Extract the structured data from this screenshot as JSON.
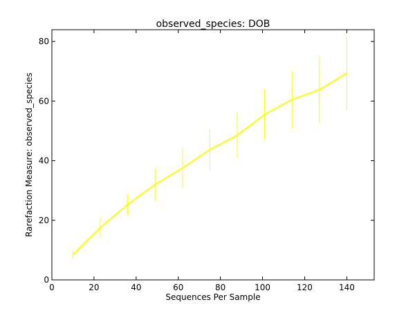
{
  "chart_data": {
    "type": "line",
    "title": "observed_species: DOB",
    "xlabel": "Sequences Per Sample",
    "ylabel": "Rarefaction Measure: observed_species",
    "xlim": [
      0,
      153
    ],
    "ylim": [
      0,
      80
    ],
    "xticks": [
      "0",
      "20",
      "40",
      "60",
      "80",
      "100",
      "120",
      "140"
    ],
    "yticks": [
      "0",
      "20",
      "40",
      "60",
      "80"
    ],
    "grid": false,
    "legend": "none",
    "color": "#ffff00",
    "series": [
      {
        "x": [
          10,
          23,
          36,
          49,
          62,
          75,
          88,
          101,
          114,
          127,
          140
        ],
        "y": [
          8.5,
          17.5,
          25.3,
          32.0,
          37.5,
          43.7,
          48.5,
          55.5,
          60.5,
          63.8,
          69.3
        ],
        "err": [
          1.3,
          3.5,
          3.5,
          5.5,
          6.8,
          7.0,
          7.7,
          8.5,
          9.5,
          11.3,
          12.5
        ]
      }
    ]
  }
}
